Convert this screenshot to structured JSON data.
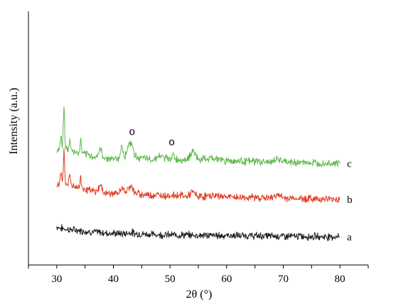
{
  "chart_data": {
    "type": "line",
    "title": "",
    "xlabel": "2θ (°)",
    "ylabel": "Intensity (a.u.)",
    "xlim": [
      25,
      85
    ],
    "xticks": [
      30,
      40,
      50,
      60,
      70,
      80
    ],
    "xtick_labels": [
      "30",
      "40",
      "50",
      "60",
      "70",
      "80"
    ],
    "y_ticks_shown": false,
    "grid": false,
    "legend": "none",
    "series": [
      {
        "name": "a",
        "color": "#1a1a1a",
        "points": [
          [
            30,
            0.62
          ],
          [
            30.5,
            0.6
          ],
          [
            31,
            0.59
          ],
          [
            31.5,
            0.58
          ],
          [
            32,
            0.575
          ],
          [
            33,
            0.565
          ],
          [
            34,
            0.555
          ],
          [
            35,
            0.545
          ],
          [
            36,
            0.535
          ],
          [
            38,
            0.52
          ],
          [
            40,
            0.51
          ],
          [
            42,
            0.505
          ],
          [
            43.2,
            0.53
          ],
          [
            43.6,
            0.51
          ],
          [
            45,
            0.5
          ],
          [
            48,
            0.49
          ],
          [
            50,
            0.485
          ],
          [
            55,
            0.48
          ],
          [
            60,
            0.475
          ],
          [
            65,
            0.47
          ],
          [
            70,
            0.465
          ],
          [
            75,
            0.46
          ],
          [
            80,
            0.455
          ]
        ]
      },
      {
        "name": "b",
        "color": "#e03a20",
        "points": [
          [
            30,
            1.3
          ],
          [
            30.5,
            1.32
          ],
          [
            30.8,
            1.52
          ],
          [
            31.0,
            1.32
          ],
          [
            31.3,
            1.85
          ],
          [
            31.5,
            1.33
          ],
          [
            32,
            1.3
          ],
          [
            32.3,
            1.45
          ],
          [
            32.6,
            1.3
          ],
          [
            33,
            1.27
          ],
          [
            34,
            1.25
          ],
          [
            34.2,
            1.44
          ],
          [
            34.5,
            1.25
          ],
          [
            35,
            1.22
          ],
          [
            36,
            1.2
          ],
          [
            37,
            1.18
          ],
          [
            37.8,
            1.3
          ],
          [
            38.1,
            1.18
          ],
          [
            39,
            1.16
          ],
          [
            40,
            1.15
          ],
          [
            41,
            1.15
          ],
          [
            41.5,
            1.28
          ],
          [
            42,
            1.16
          ],
          [
            43.2,
            1.3
          ],
          [
            43.7,
            1.16
          ],
          [
            45,
            1.14
          ],
          [
            47,
            1.13
          ],
          [
            50,
            1.12
          ],
          [
            52,
            1.13
          ],
          [
            53,
            1.1
          ],
          [
            54,
            1.18
          ],
          [
            55,
            1.1
          ],
          [
            58,
            1.12
          ],
          [
            60,
            1.1
          ],
          [
            62,
            1.09
          ],
          [
            65,
            1.09
          ],
          [
            68,
            1.08
          ],
          [
            68.8,
            1.14
          ],
          [
            70,
            1.08
          ],
          [
            75,
            1.07
          ],
          [
            80,
            1.06
          ]
        ]
      },
      {
        "name": "c",
        "color": "#5cb84a",
        "points": [
          [
            30,
            1.85
          ],
          [
            30.5,
            1.88
          ],
          [
            30.8,
            2.12
          ],
          [
            31.0,
            1.88
          ],
          [
            31.3,
            2.62
          ],
          [
            31.5,
            1.9
          ],
          [
            32,
            1.86
          ],
          [
            32.3,
            2.0
          ],
          [
            32.6,
            1.86
          ],
          [
            33,
            1.82
          ],
          [
            34,
            1.8
          ],
          [
            34.2,
            2.05
          ],
          [
            34.5,
            1.8
          ],
          [
            35,
            1.78
          ],
          [
            36,
            1.76
          ],
          [
            37,
            1.74
          ],
          [
            37.8,
            1.88
          ],
          [
            38.1,
            1.74
          ],
          [
            39,
            1.72
          ],
          [
            40,
            1.72
          ],
          [
            41,
            1.72
          ],
          [
            41.4,
            1.92
          ],
          [
            42,
            1.74
          ],
          [
            42.5,
            1.9
          ],
          [
            43.2,
            1.98
          ],
          [
            43.8,
            1.76
          ],
          [
            45,
            1.72
          ],
          [
            47,
            1.7
          ],
          [
            48,
            1.76
          ],
          [
            50,
            1.7
          ],
          [
            50.5,
            1.8
          ],
          [
            51,
            1.7
          ],
          [
            53,
            1.7
          ],
          [
            54,
            1.84
          ],
          [
            55,
            1.7
          ],
          [
            58,
            1.72
          ],
          [
            60,
            1.68
          ],
          [
            62,
            1.68
          ],
          [
            65,
            1.67
          ],
          [
            68,
            1.66
          ],
          [
            69,
            1.72
          ],
          [
            70,
            1.66
          ],
          [
            75,
            1.65
          ],
          [
            80,
            1.64
          ]
        ]
      }
    ],
    "annotations": [
      {
        "text": "o",
        "x": 43.3,
        "y": 2.1
      },
      {
        "text": "o",
        "x": 50.3,
        "y": 1.93
      }
    ]
  }
}
